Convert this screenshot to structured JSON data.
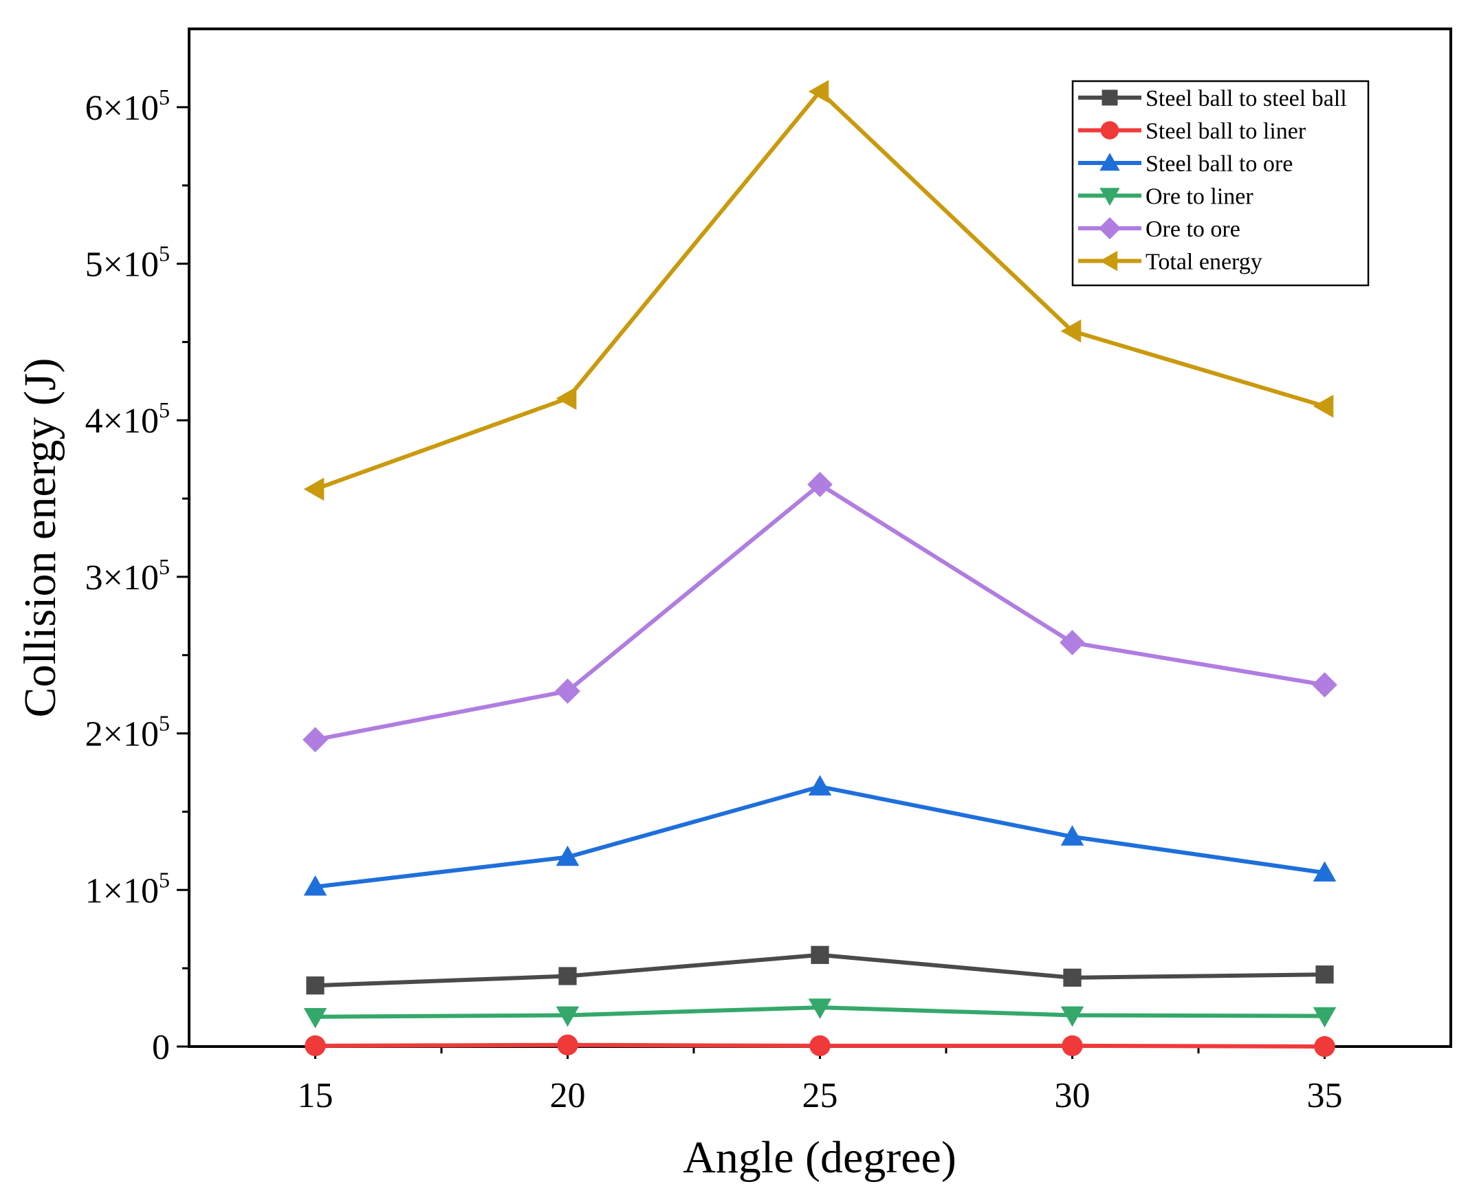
{
  "chart_data": {
    "type": "line",
    "xlabel": "Angle (degree)",
    "ylabel": "Collision energy (J)",
    "x": [
      15,
      20,
      25,
      30,
      35
    ],
    "xlim": [
      12.5,
      37.5
    ],
    "ylim": [
      0,
      650000
    ],
    "x_ticks": [
      "15",
      "20",
      "25",
      "30",
      "35"
    ],
    "y_ticks": [
      {
        "value": 0,
        "label": "0"
      },
      {
        "value": 100000,
        "label": "1×10",
        "exp": "5"
      },
      {
        "value": 200000,
        "label": "2×10",
        "exp": "5"
      },
      {
        "value": 300000,
        "label": "3×10",
        "exp": "5"
      },
      {
        "value": 400000,
        "label": "4×10",
        "exp": "5"
      },
      {
        "value": 500000,
        "label": "5×10",
        "exp": "5"
      },
      {
        "value": 600000,
        "label": "6×10",
        "exp": "5"
      }
    ],
    "legend_position": "top-right",
    "grid": false,
    "series": [
      {
        "name": "Steel ball to steel ball",
        "color": "#4a4a4a",
        "marker": "square",
        "values": [
          39000,
          45000,
          58500,
          44000,
          46000
        ]
      },
      {
        "name": "Steel ball to liner",
        "color": "#f03a3a",
        "marker": "circle",
        "values": [
          500,
          1000,
          500,
          500,
          0
        ]
      },
      {
        "name": "Steel ball to ore",
        "color": "#1f6fdb",
        "marker": "triangle-up",
        "values": [
          102000,
          121000,
          166000,
          134000,
          111000
        ]
      },
      {
        "name": "Ore to liner",
        "color": "#34a86a",
        "marker": "triangle-down",
        "values": [
          19000,
          20000,
          25000,
          20000,
          19500
        ]
      },
      {
        "name": "Ore to ore",
        "color": "#b07de0",
        "marker": "diamond",
        "values": [
          196000,
          227000,
          359000,
          258000,
          231000
        ]
      },
      {
        "name": "Total energy",
        "color": "#c99a0e",
        "marker": "triangle-left",
        "values": [
          356000,
          414000,
          610000,
          457000,
          409000
        ]
      }
    ]
  }
}
